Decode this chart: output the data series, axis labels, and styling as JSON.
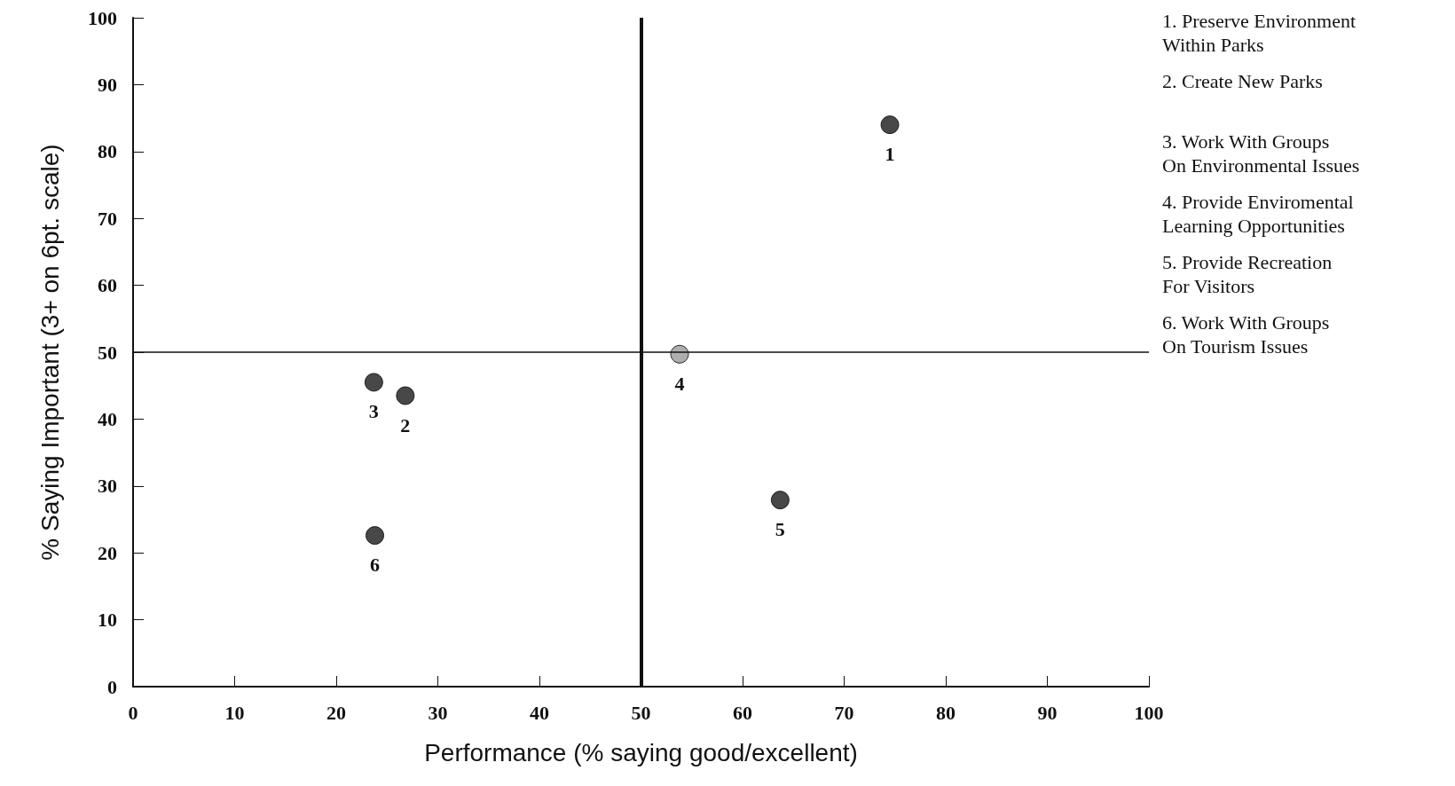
{
  "chart_data": {
    "type": "scatter",
    "xlabel": "Performance (% saying good/excellent)",
    "ylabel": "% Saying Important (3+ on 6pt. scale)",
    "x": [
      74.5,
      26.8,
      23.7,
      53.8,
      63.7,
      23.8
    ],
    "values": [
      84,
      43.5,
      45.5,
      49.7,
      27.9,
      22.6
    ],
    "colors": [
      "#1a1a1a",
      "#1a1a1a",
      "#1a1a1a",
      "#9a9a9a",
      "#1a1a1a",
      "#1a1a1a"
    ],
    "marker": "circle",
    "xlim": [
      0,
      100
    ],
    "xticks": [
      0,
      10,
      20,
      30,
      40,
      50,
      60,
      70,
      80,
      90,
      100
    ],
    "ylim": [
      0,
      100
    ],
    "yticks": [
      0,
      10,
      20,
      30,
      40,
      50,
      60,
      70,
      80,
      90,
      100
    ],
    "grid": false,
    "ref_lines": [
      {
        "axis": "x",
        "value": 50,
        "label": null
      },
      {
        "axis": "y",
        "value": 50,
        "label": null
      }
    ],
    "annotations": [
      "1. Preserve Environment\nWithin Parks",
      "2. Create New Parks",
      "3. Work With Groups\nOn Environmental Issues",
      "4. Provide Enviromental\nLearning Opportunities",
      "5. Provide Recreation\nFor Visitors",
      "6. Work With Groups\nOn Tourism Issues",
      {
        "text": "1",
        "x": 74.5,
        "y": 84
      },
      {
        "text": "2",
        "x": 26.8,
        "y": 43.5
      },
      {
        "text": "3",
        "x": 23.7,
        "y": 45.5
      },
      {
        "text": "4",
        "x": 53.8,
        "y": 49.7
      },
      {
        "text": "5",
        "x": 63.7,
        "y": 27.9
      },
      {
        "text": "6",
        "x": 23.8,
        "y": 22.6
      }
    ]
  }
}
